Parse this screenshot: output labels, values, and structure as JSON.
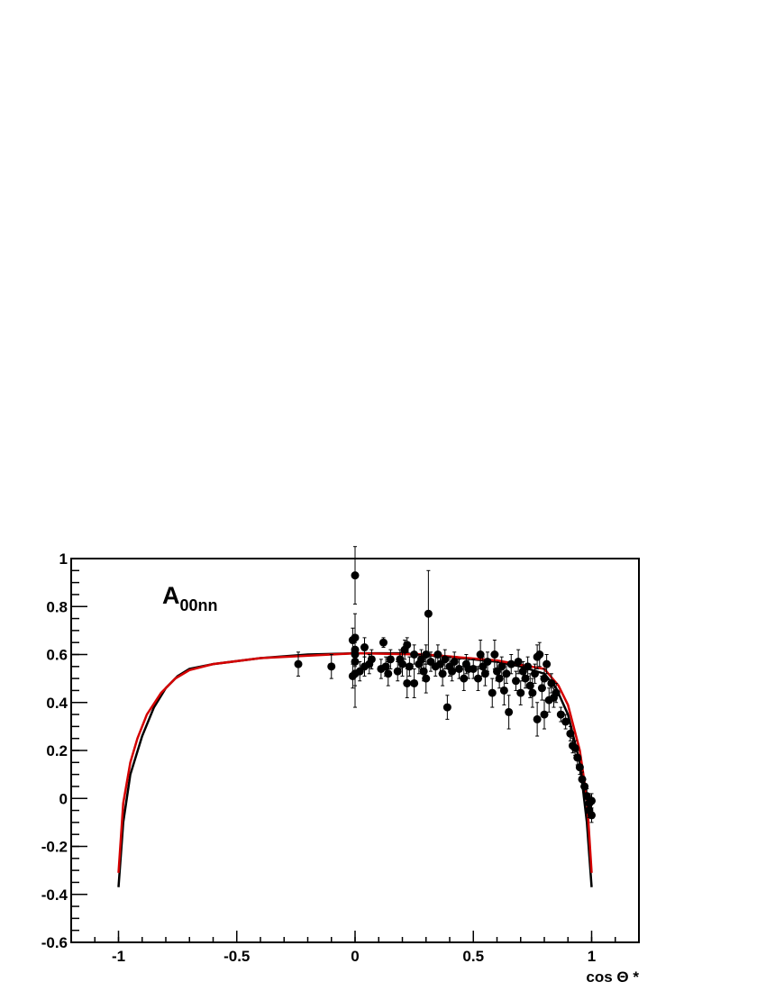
{
  "chart_data": {
    "type": "scatter",
    "x_label": "cos Θ *",
    "annotation": {
      "text": "A",
      "subscript": "00nn"
    },
    "xlim": [
      -1.2,
      1.2
    ],
    "ylim": [
      -0.6,
      1
    ],
    "xticks": [
      -1,
      -0.5,
      0,
      0.5,
      1
    ],
    "yticks": [
      -0.6,
      -0.4,
      -0.2,
      0,
      0.2,
      0.4,
      0.6,
      0.8,
      1
    ],
    "series": [
      {
        "type": "scatter",
        "color": "#000000",
        "x": [
          -0.24,
          -0.1,
          -0.01,
          -0.01,
          0,
          0,
          0,
          0,
          0,
          0,
          0.02,
          0.04,
          0.04,
          0.06,
          0.07,
          0.11,
          0.12,
          0.13,
          0.14,
          0.15,
          0.18,
          0.19,
          0.2,
          0.21,
          0.22,
          0.22,
          0.23,
          0.25,
          0.25,
          0.27,
          0.28,
          0.29,
          0.3,
          0.3,
          0.31,
          0.32,
          0.34,
          0.35,
          0.36,
          0.37,
          0.38,
          0.39,
          0.4,
          0.41,
          0.42,
          0.44,
          0.46,
          0.47,
          0.48,
          0.5,
          0.52,
          0.53,
          0.54,
          0.55,
          0.56,
          0.58,
          0.59,
          0.6,
          0.61,
          0.62,
          0.63,
          0.64,
          0.65,
          0.66,
          0.68,
          0.69,
          0.7,
          0.71,
          0.72,
          0.73,
          0.74,
          0.75,
          0.76,
          0.77,
          0.77,
          0.78,
          0.79,
          0.8,
          0.8,
          0.81,
          0.82,
          0.83,
          0.84,
          0.85,
          0.87,
          0.89,
          0.91,
          0.92,
          0.93,
          0.94,
          0.95,
          0.96,
          0.97,
          0.98,
          0.99,
          0.99,
          1.0,
          1.0
        ],
        "values": [
          0.56,
          0.55,
          0.51,
          0.66,
          0.93,
          0.67,
          0.62,
          0.57,
          0.52,
          0.6,
          0.53,
          0.55,
          0.63,
          0.56,
          0.58,
          0.54,
          0.65,
          0.55,
          0.52,
          0.58,
          0.53,
          0.58,
          0.56,
          0.62,
          0.64,
          0.48,
          0.55,
          0.6,
          0.48,
          0.56,
          0.58,
          0.53,
          0.6,
          0.5,
          0.77,
          0.57,
          0.55,
          0.6,
          0.56,
          0.52,
          0.58,
          0.38,
          0.55,
          0.53,
          0.57,
          0.54,
          0.5,
          0.56,
          0.54,
          0.54,
          0.5,
          0.6,
          0.55,
          0.52,
          0.57,
          0.44,
          0.6,
          0.53,
          0.5,
          0.55,
          0.45,
          0.52,
          0.36,
          0.56,
          0.49,
          0.57,
          0.44,
          0.53,
          0.5,
          0.55,
          0.47,
          0.44,
          0.52,
          0.33,
          0.59,
          0.6,
          0.46,
          0.35,
          0.5,
          0.56,
          0.41,
          0.48,
          0.42,
          0.44,
          0.35,
          0.32,
          0.27,
          0.22,
          0.21,
          0.17,
          0.13,
          0.08,
          0.05,
          0.01,
          -0.05,
          -0.02,
          -0.07,
          -0.01
        ],
        "errors": [
          0.05,
          0.05,
          0.05,
          0.05,
          0.12,
          0.1,
          0.05,
          0.1,
          0.14,
          0.05,
          0.04,
          0.04,
          0.04,
          0.04,
          0.04,
          0.04,
          0.02,
          0.04,
          0.05,
          0.04,
          0.04,
          0.04,
          0.05,
          0.04,
          0.03,
          0.06,
          0.04,
          0.04,
          0.06,
          0.04,
          0.04,
          0.04,
          0.04,
          0.06,
          0.18,
          0.04,
          0.04,
          0.04,
          0.04,
          0.05,
          0.04,
          0.05,
          0.04,
          0.04,
          0.04,
          0.04,
          0.05,
          0.04,
          0.04,
          0.04,
          0.05,
          0.06,
          0.04,
          0.05,
          0.04,
          0.06,
          0.06,
          0.04,
          0.04,
          0.04,
          0.06,
          0.04,
          0.07,
          0.04,
          0.04,
          0.05,
          0.05,
          0.04,
          0.04,
          0.04,
          0.05,
          0.06,
          0.04,
          0.07,
          0.05,
          0.05,
          0.05,
          0.06,
          0.04,
          0.04,
          0.05,
          0.04,
          0.04,
          0.04,
          0.03,
          0.03,
          0.03,
          0.03,
          0.03,
          0.03,
          0.03,
          0.03,
          0.03,
          0.03,
          0.03,
          0.03,
          0.03,
          0.03
        ]
      },
      {
        "type": "line",
        "color": "#000000",
        "x": [
          -1,
          -0.98,
          -0.95,
          -0.9,
          -0.85,
          -0.8,
          -0.75,
          -0.7,
          -0.6,
          -0.4,
          -0.2,
          0,
          0.2,
          0.4,
          0.6,
          0.7,
          0.8,
          0.85,
          0.9,
          0.95,
          0.98,
          1
        ],
        "values": [
          -0.37,
          -0.1,
          0.1,
          0.26,
          0.38,
          0.46,
          0.51,
          0.54,
          0.56,
          0.585,
          0.6,
          0.605,
          0.605,
          0.59,
          0.57,
          0.55,
          0.52,
          0.46,
          0.35,
          0.15,
          -0.1,
          -0.37
        ]
      },
      {
        "type": "line",
        "color": "#d40000",
        "x": [
          -1,
          -0.98,
          -0.95,
          -0.92,
          -0.88,
          -0.82,
          -0.76,
          -0.7,
          -0.6,
          -0.4,
          0,
          0.3,
          0.6,
          0.8,
          0.86,
          0.9,
          0.95,
          0.98,
          1
        ],
        "values": [
          -0.31,
          -0.02,
          0.15,
          0.25,
          0.35,
          0.44,
          0.5,
          0.535,
          0.56,
          0.585,
          0.605,
          0.6,
          0.575,
          0.54,
          0.47,
          0.39,
          0.2,
          0.0,
          -0.31
        ]
      }
    ]
  }
}
